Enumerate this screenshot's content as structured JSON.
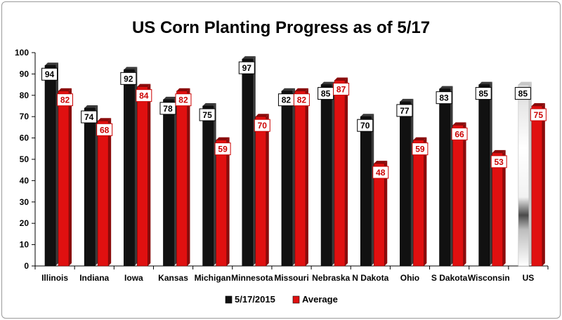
{
  "chart_data": {
    "type": "bar",
    "title": "US Corn Planting Progress as of 5/17",
    "xlabel": "",
    "ylabel": "",
    "ylim": [
      0,
      100
    ],
    "yticks": [
      0,
      10,
      20,
      30,
      40,
      50,
      60,
      70,
      80,
      90,
      100
    ],
    "categories": [
      "Illinois",
      "Indiana",
      "Iowa",
      "Kansas",
      "Michigan",
      "Minnesota",
      "Missouri",
      "Nebraska",
      "N Dakota",
      "Ohio",
      "S Dakota",
      "Wisconsin",
      "US"
    ],
    "series": [
      {
        "name": "5/17/2015",
        "color": "#111111",
        "values": [
          94,
          74,
          92,
          78,
          75,
          97,
          82,
          85,
          70,
          77,
          83,
          85,
          85
        ]
      },
      {
        "name": "Average",
        "color": "#e01010",
        "values": [
          82,
          68,
          84,
          82,
          59,
          70,
          82,
          87,
          48,
          59,
          66,
          53,
          75
        ]
      }
    ],
    "data_labels": {
      "5/17/2015": [
        "94",
        "74",
        "92",
        "78",
        "75",
        "97",
        "82",
        "85",
        "70",
        "77",
        "83",
        "85",
        "85"
      ],
      "Average": [
        "82",
        "68",
        "84",
        "82",
        "59",
        "70",
        "82",
        "87",
        "48",
        "59",
        "66",
        "53",
        "75"
      ]
    },
    "legend_position": "bottom",
    "grid": false
  }
}
